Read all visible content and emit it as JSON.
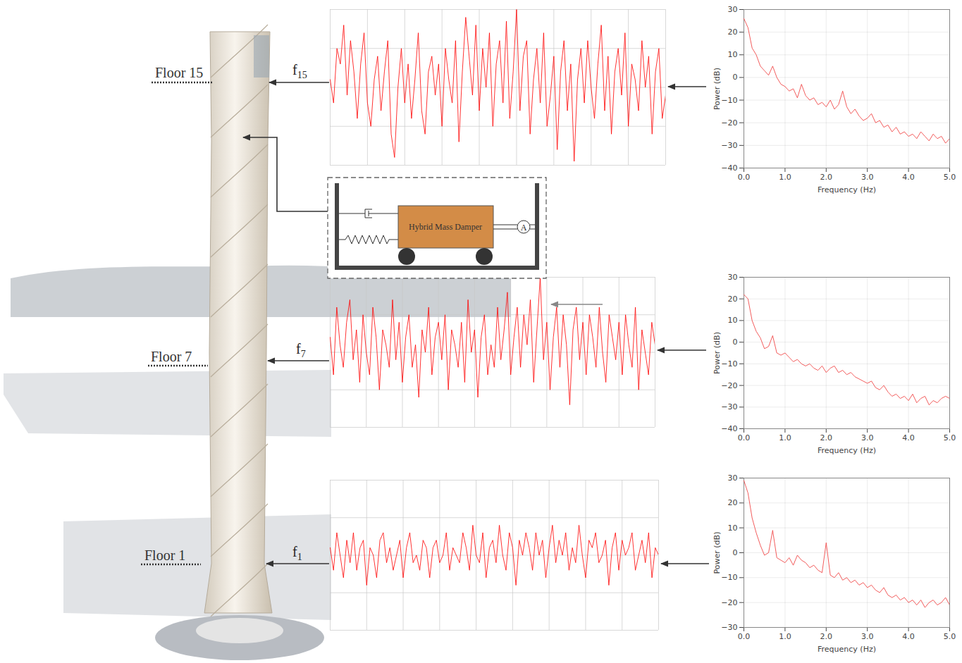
{
  "floors": [
    {
      "label": "Floor 15",
      "signal": {
        "base": "f",
        "sub": "15"
      }
    },
    {
      "label": "Floor 7",
      "signal": {
        "base": "f",
        "sub": "7"
      }
    },
    {
      "label": "Floor 1",
      "signal": {
        "base": "f",
        "sub": "1"
      }
    }
  ],
  "damper": {
    "label": "Hybrid Mass Damper",
    "actuator": "A"
  },
  "chart_data": [
    {
      "type": "line",
      "color": "#ff0000",
      "grid": true,
      "tick_labels": false,
      "xlim": [
        0,
        99
      ],
      "xticks": [
        0,
        11,
        22,
        33,
        44,
        55,
        66,
        77,
        88,
        99
      ],
      "ylim": [
        -1,
        1
      ],
      "yticks": [
        -1,
        -0.5,
        0,
        0.5,
        1
      ],
      "values": [
        0.1,
        -0.2,
        0.5,
        0.3,
        0.8,
        -0.1,
        0.6,
        0.2,
        -0.4,
        0.3,
        0.7,
        -0.2,
        -0.5,
        0.1,
        0.4,
        -0.3,
        0.2,
        0.6,
        -0.6,
        -0.9,
        0.0,
        0.5,
        -0.2,
        0.3,
        -0.4,
        0.1,
        0.7,
        -0.3,
        -0.6,
        0.2,
        0.4,
        -0.1,
        0.3,
        -0.5,
        0.5,
        0.1,
        -0.2,
        0.6,
        -0.7,
        0.2,
        0.9,
        0.4,
        -0.1,
        0.8,
        -0.3,
        0.5,
        0.0,
        0.7,
        -0.5,
        0.3,
        0.6,
        -0.2,
        0.85,
        -0.4,
        0.2,
        1.0,
        -0.3,
        0.4,
        0.6,
        -0.6,
        0.1,
        0.5,
        -0.2,
        0.7,
        -0.5,
        -0.1,
        0.4,
        -0.8,
        0.2,
        0.6,
        -0.3,
        0.3,
        -0.95,
        0.1,
        0.5,
        -0.2,
        0.6,
        0.0,
        -0.4,
        0.3,
        0.8,
        -0.3,
        0.4,
        -0.6,
        0.2,
        0.5,
        -0.1,
        0.7,
        -0.5,
        0.3,
        0.1,
        -0.3,
        0.6,
        0.0,
        0.4,
        -0.6,
        0.2,
        0.5,
        -0.4,
        -0.1
      ]
    },
    {
      "type": "line",
      "color": "#ff0000",
      "grid": true,
      "tick_labels": false,
      "xlim": [
        0,
        99
      ],
      "xticks": [
        0,
        11,
        22,
        33,
        44,
        55,
        66,
        77,
        88,
        99
      ],
      "ylim": [
        -1,
        1
      ],
      "yticks": [
        -1,
        -0.5,
        0,
        0.5,
        1
      ],
      "values": [
        0.2,
        -0.3,
        0.6,
        0.1,
        -0.2,
        0.4,
        0.7,
        -0.1,
        0.3,
        -0.4,
        0.5,
        0.0,
        -0.3,
        0.6,
        0.2,
        -0.5,
        0.3,
        0.1,
        -0.2,
        0.7,
        -0.1,
        0.4,
        -0.4,
        0.2,
        0.5,
        -0.2,
        0.1,
        -0.6,
        0.3,
        0.0,
        0.6,
        -0.3,
        0.2,
        0.4,
        -0.1,
        0.5,
        -0.5,
        0.3,
        0.1,
        -0.2,
        0.4,
        -0.4,
        0.7,
        0.0,
        0.3,
        -0.6,
        0.2,
        0.5,
        -0.3,
        0.1,
        -0.2,
        0.6,
        -0.1,
        0.3,
        0.8,
        -0.3,
        0.2,
        0.6,
        -0.2,
        0.5,
        0.1,
        0.7,
        -0.4,
        0.3,
        1.0,
        -0.1,
        0.4,
        -0.5,
        0.2,
        0.6,
        -0.2,
        0.5,
        0.1,
        -0.7,
        0.3,
        0.6,
        -0.1,
        0.4,
        -0.3,
        0.5,
        0.2,
        -0.2,
        0.6,
        0.0,
        -0.4,
        0.5,
        0.2,
        -0.1,
        0.4,
        -0.3,
        0.5,
        0.1,
        -0.2,
        0.6,
        -0.5,
        0.3,
        0.0,
        -0.3,
        0.4,
        0.1
      ]
    },
    {
      "type": "line",
      "color": "#ff0000",
      "grid": true,
      "tick_labels": false,
      "xlim": [
        0,
        99
      ],
      "xticks": [
        0,
        11,
        22,
        33,
        44,
        55,
        66,
        77,
        88,
        99
      ],
      "ylim": [
        -1,
        1
      ],
      "yticks": [
        -1,
        -0.5,
        0,
        0.5,
        1
      ],
      "values": [
        0.1,
        -0.2,
        0.3,
        0.0,
        -0.3,
        0.2,
        -0.1,
        0.3,
        -0.2,
        0.1,
        0.2,
        -0.4,
        0.1,
        0.0,
        -0.3,
        0.2,
        0.3,
        -0.1,
        0.1,
        -0.2,
        0.0,
        0.2,
        -0.3,
        0.1,
        0.3,
        -0.1,
        0.0,
        -0.2,
        0.2,
        0.1,
        -0.3,
        0.1,
        0.2,
        -0.1,
        0.0,
        0.3,
        -0.2,
        0.1,
        0.0,
        -0.1,
        0.3,
        0.1,
        -0.2,
        0.4,
        0.0,
        -0.1,
        0.3,
        -0.3,
        0.1,
        0.2,
        -0.1,
        0.4,
        0.0,
        -0.2,
        0.3,
        0.1,
        -0.4,
        0.2,
        0.0,
        0.3,
        0.1,
        -0.2,
        0.3,
        0.0,
        0.2,
        -0.3,
        0.1,
        0.4,
        -0.1,
        0.2,
        0.0,
        0.3,
        -0.2,
        0.1,
        -0.1,
        0.4,
        0.0,
        -0.3,
        0.2,
        0.1,
        0.3,
        -0.1,
        0.0,
        0.2,
        -0.4,
        0.1,
        0.3,
        -0.2,
        0.2,
        0.0,
        0.1,
        0.3,
        -0.2,
        0.0,
        0.2,
        -0.1,
        0.3,
        -0.3,
        0.1,
        0.0
      ]
    },
    {
      "type": "line",
      "color": "#f04a4a",
      "grid": true,
      "xlabel": "Frequency (Hz)",
      "ylabel": "Power (dB)",
      "xlim": [
        0,
        5
      ],
      "xticks": [
        0,
        1,
        2,
        3,
        4,
        5
      ],
      "ylim": [
        -40,
        30
      ],
      "yticks": [
        -40,
        -30,
        -20,
        -10,
        0,
        10,
        20,
        30
      ],
      "x": [
        0,
        0.1,
        0.2,
        0.3,
        0.4,
        0.5,
        0.6,
        0.7,
        0.8,
        0.9,
        1,
        1.1,
        1.2,
        1.3,
        1.4,
        1.5,
        1.6,
        1.7,
        1.8,
        1.9,
        2,
        2.1,
        2.2,
        2.3,
        2.4,
        2.5,
        2.6,
        2.7,
        2.8,
        2.9,
        3,
        3.1,
        3.2,
        3.3,
        3.4,
        3.5,
        3.6,
        3.7,
        3.8,
        3.9,
        4,
        4.1,
        4.2,
        4.3,
        4.4,
        4.5,
        4.6,
        4.7,
        4.8,
        4.9,
        5
      ],
      "values": [
        26,
        22,
        13,
        10,
        5,
        3,
        1,
        5,
        0,
        -3,
        -4,
        -6,
        -5,
        -9,
        -3,
        -8,
        -10,
        -9,
        -12,
        -11,
        -13,
        -10,
        -14,
        -12,
        -6,
        -13,
        -16,
        -14,
        -17,
        -19,
        -18,
        -16,
        -20,
        -19,
        -22,
        -21,
        -24,
        -22,
        -25,
        -24,
        -26,
        -25,
        -27,
        -24,
        -26,
        -28,
        -25,
        -27,
        -26,
        -29,
        -27
      ]
    },
    {
      "type": "line",
      "color": "#f04a4a",
      "grid": true,
      "xlabel": "Frequency (Hz)",
      "ylabel": "Power (dB)",
      "xlim": [
        0,
        5
      ],
      "xticks": [
        0,
        1,
        2,
        3,
        4,
        5
      ],
      "ylim": [
        -40,
        30
      ],
      "yticks": [
        -40,
        -30,
        -20,
        -10,
        0,
        10,
        20,
        30
      ],
      "x": [
        0,
        0.1,
        0.2,
        0.3,
        0.4,
        0.5,
        0.6,
        0.7,
        0.8,
        0.9,
        1,
        1.1,
        1.2,
        1.3,
        1.4,
        1.5,
        1.6,
        1.7,
        1.8,
        1.9,
        2,
        2.1,
        2.2,
        2.3,
        2.4,
        2.5,
        2.6,
        2.7,
        2.8,
        2.9,
        3,
        3.1,
        3.2,
        3.3,
        3.4,
        3.5,
        3.6,
        3.7,
        3.8,
        3.9,
        4,
        4.1,
        4.2,
        4.3,
        4.4,
        4.5,
        4.6,
        4.7,
        4.8,
        4.9,
        5
      ],
      "values": [
        22,
        20,
        10,
        5,
        2,
        -3,
        -2,
        3,
        -5,
        -6,
        -5,
        -7,
        -9,
        -8,
        -10,
        -11,
        -10,
        -12,
        -13,
        -11,
        -14,
        -12,
        -11,
        -14,
        -13,
        -15,
        -14,
        -16,
        -17,
        -18,
        -19,
        -18,
        -21,
        -22,
        -20,
        -23,
        -25,
        -24,
        -26,
        -25,
        -27,
        -24,
        -28,
        -26,
        -25,
        -29,
        -27,
        -28,
        -26,
        -25,
        -26
      ]
    },
    {
      "type": "line",
      "color": "#f04a4a",
      "grid": true,
      "xlabel": "Frequency (Hz)",
      "ylabel": "Power (dB)",
      "xlim": [
        0,
        5
      ],
      "xticks": [
        0,
        1,
        2,
        3,
        4,
        5
      ],
      "ylim": [
        -30,
        30
      ],
      "yticks": [
        -30,
        -20,
        -10,
        0,
        10,
        20,
        30
      ],
      "x": [
        0,
        0.1,
        0.2,
        0.3,
        0.4,
        0.5,
        0.6,
        0.7,
        0.8,
        0.9,
        1,
        1.1,
        1.2,
        1.3,
        1.4,
        1.5,
        1.6,
        1.7,
        1.8,
        1.9,
        2,
        2.1,
        2.2,
        2.3,
        2.4,
        2.5,
        2.6,
        2.7,
        2.8,
        2.9,
        3,
        3.1,
        3.2,
        3.3,
        3.4,
        3.5,
        3.6,
        3.7,
        3.8,
        3.9,
        4,
        4.1,
        4.2,
        4.3,
        4.4,
        4.5,
        4.6,
        4.7,
        4.8,
        4.9,
        5
      ],
      "values": [
        29,
        24,
        14,
        8,
        3,
        -1,
        0,
        9,
        -2,
        -3,
        -4,
        -2,
        -5,
        -1,
        -3,
        -4,
        -6,
        -5,
        -7,
        -8,
        4,
        -9,
        -10,
        -8,
        -11,
        -10,
        -12,
        -11,
        -13,
        -12,
        -14,
        -13,
        -15,
        -16,
        -14,
        -17,
        -18,
        -17,
        -19,
        -18,
        -20,
        -19,
        -21,
        -19,
        -22,
        -20,
        -19,
        -21,
        -20,
        -18,
        -21
      ]
    }
  ]
}
